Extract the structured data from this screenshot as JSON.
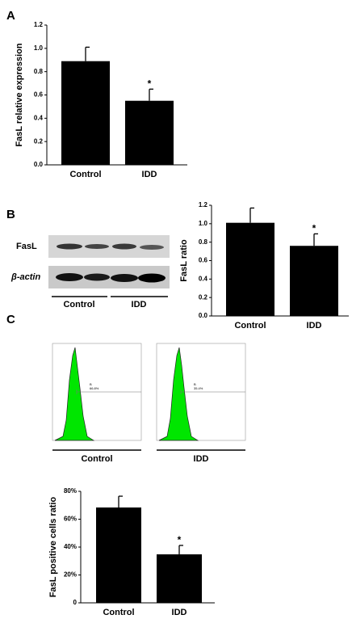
{
  "panel_labels": [
    "A",
    "B",
    "C"
  ],
  "chart_data": [
    {
      "type": "bar",
      "ylabel": "FasL relative expression",
      "categories": [
        "Control",
        "IDD"
      ],
      "values": [
        0.89,
        0.55
      ],
      "errors": [
        0.12,
        0.1
      ],
      "significance": [
        null,
        "*"
      ],
      "color": "#000000",
      "ylim": [
        0,
        1.2
      ],
      "yticks": [
        {
          "value": 0,
          "label": "0.0"
        },
        {
          "value": 0.2,
          "label": "0.2"
        },
        {
          "value": 0.4,
          "label": "0.4"
        },
        {
          "value": 0.6,
          "label": "0.6"
        },
        {
          "value": 0.8,
          "label": "0.8"
        },
        {
          "value": 1,
          "label": "1.0"
        },
        {
          "value": 1.2,
          "label": "1.2"
        }
      ]
    },
    {
      "type": "bar",
      "ylabel": "FasL ratio",
      "categories": [
        "Control",
        "IDD"
      ],
      "values": [
        1.01,
        0.76
      ],
      "errors": [
        0.16,
        0.13
      ],
      "significance": [
        null,
        "*"
      ],
      "color": "#000000",
      "ylim": [
        0,
        1.2
      ],
      "yticks": [
        {
          "value": 0,
          "label": "0.0"
        },
        {
          "value": 0.2,
          "label": "0.2"
        },
        {
          "value": 0.4,
          "label": "0.4"
        },
        {
          "value": 0.6,
          "label": "0.6"
        },
        {
          "value": 0.8,
          "label": "0.8"
        },
        {
          "value": 1,
          "label": "1.0"
        },
        {
          "value": 1.2,
          "label": "1.2"
        }
      ]
    },
    {
      "type": "bar",
      "ylabel": "FasL positive cells ratio",
      "categories": [
        "Control",
        "IDD"
      ],
      "values": [
        68.4,
        34.8
      ],
      "errors": [
        8.1,
        6.4
      ],
      "significance": [
        null,
        "*"
      ],
      "color": "#000000",
      "ylim": [
        0,
        80
      ],
      "yticks": [
        0,
        {
          "value": 20,
          "label": "20%"
        },
        {
          "value": 40,
          "label": "40%"
        },
        {
          "value": 60,
          "label": "60%"
        },
        {
          "value": 80,
          "label": "80%"
        }
      ]
    }
  ],
  "blot": {
    "rows": [
      "FasL",
      "β-actin"
    ],
    "groups": [
      "Control",
      "IDD"
    ]
  },
  "flow": {
    "panels": [
      {
        "gate": "B",
        "percent": "66.8%",
        "label": "Control"
      },
      {
        "gate": "B",
        "percent": "35.4%",
        "label": "IDD"
      }
    ]
  }
}
